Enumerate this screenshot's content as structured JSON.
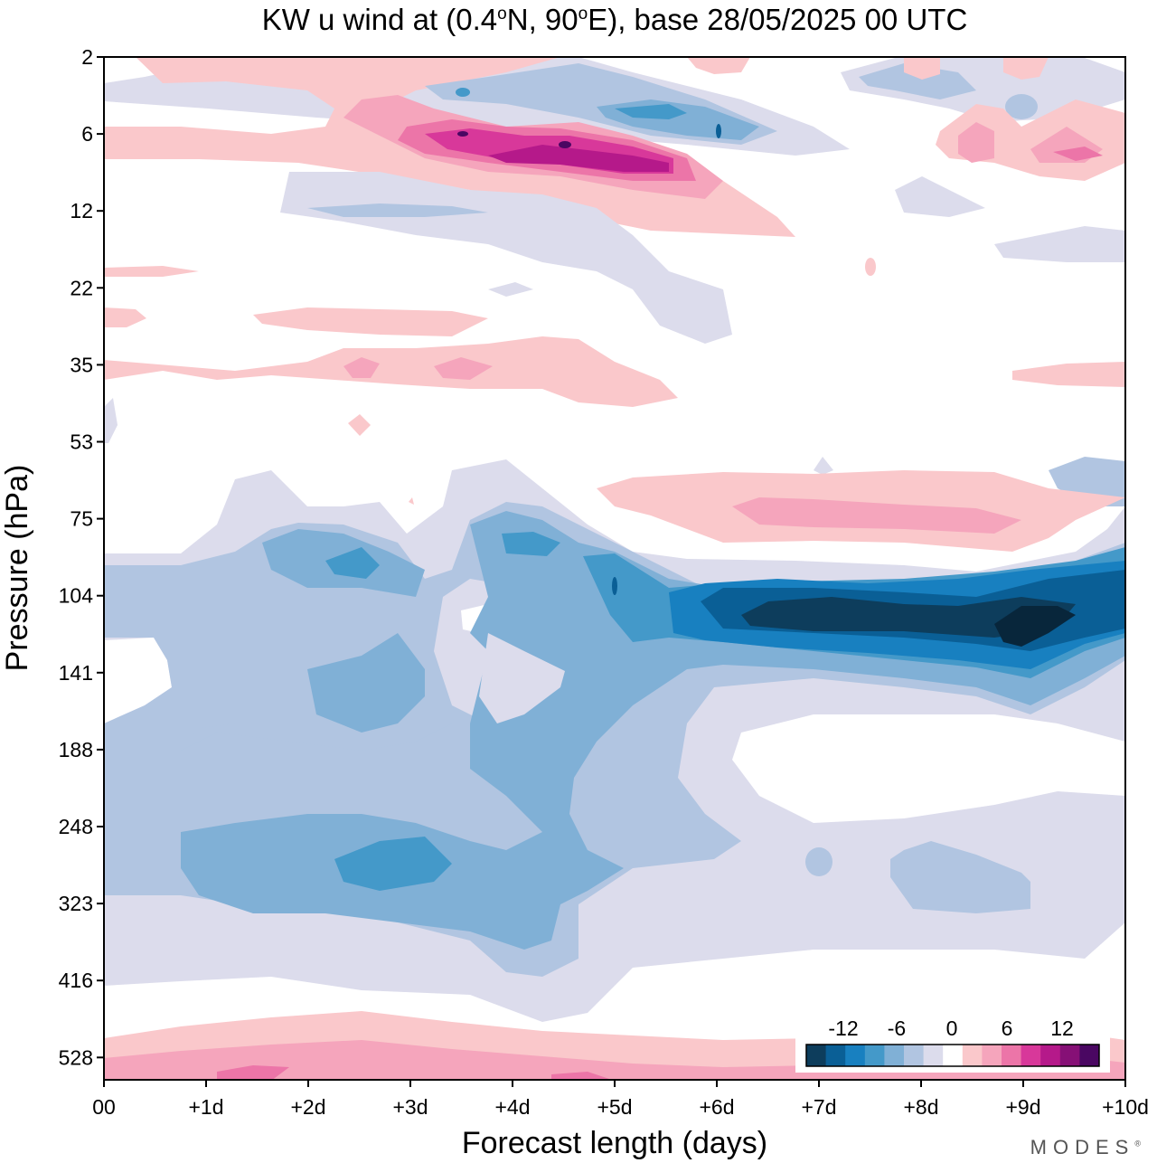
{
  "chart_data": {
    "type": "heatmap",
    "title_main": "KW u wind at (0.4",
    "title_lat": "N, 90",
    "title_base": "E),  base 28/05/2025  00 UTC",
    "degree_symbol": "o",
    "xlabel": "Forecast length (days)",
    "ylabel": "Pressure (hPa)",
    "x_ticks": [
      "00",
      "+1d",
      "+2d",
      "+3d",
      "+4d",
      "+5d",
      "+6d",
      "+7d",
      "+8d",
      "+9d",
      "+10d"
    ],
    "x_range_days": [
      0,
      10
    ],
    "y_ticks": [
      "2",
      "6",
      "12",
      "22",
      "35",
      "53",
      "75",
      "104",
      "141",
      "188",
      "248",
      "323",
      "416",
      "528"
    ],
    "y_scale": "log",
    "colorbar": {
      "ticks": [
        "-12",
        "-6",
        "0",
        "6",
        "12"
      ],
      "levels": [
        -15,
        -12,
        -10,
        -8,
        -6,
        -4,
        -2,
        2,
        4,
        6,
        8,
        10,
        12,
        15
      ],
      "colors": [
        "#0d3d5c",
        "#0a5f96",
        "#1880c0",
        "#4499c9",
        "#80b0d6",
        "#b1c5e1",
        "#dcdcec",
        "#ffffff",
        "#fac8cb",
        "#f5a5bc",
        "#ec75a8",
        "#d8389a",
        "#b5198a",
        "#861076",
        "#4a0762"
      ],
      "placement": "bottom-right"
    },
    "features": [
      {
        "name": "low-level westerly belt",
        "sign": "positive",
        "x_days": [
          0,
          10
        ],
        "pressure_hPa": [
          500,
          560
        ],
        "peak_u": 8
      },
      {
        "name": "upper troposphere easterlies",
        "sign": "negative",
        "x_days": [
          0,
          5
        ],
        "pressure_hPa": [
          230,
          400
        ],
        "peak_u": -8
      },
      {
        "name": "tropopause easterly jet",
        "sign": "negative",
        "x_days": [
          5.5,
          10
        ],
        "pressure_hPa": [
          90,
          125
        ],
        "peak_u": -15
      },
      {
        "name": "lower stratosphere westerlies",
        "sign": "positive",
        "x_days": [
          5,
          9.5
        ],
        "pressure_hPa": [
          65,
          80
        ],
        "peak_u": 6
      },
      {
        "name": "middle stratosphere westerly maximum",
        "sign": "positive",
        "x_days": [
          3,
          6
        ],
        "pressure_hPa": [
          5,
          8
        ],
        "peak_u": 14
      },
      {
        "name": "middle stratosphere easterlies",
        "sign": "negative",
        "x_days": [
          3.5,
          6.5
        ],
        "pressure_hPa": [
          3,
          6
        ],
        "peak_u": -10
      }
    ]
  },
  "branding": {
    "logo_text": "MODES",
    "logo_mark": "®"
  }
}
